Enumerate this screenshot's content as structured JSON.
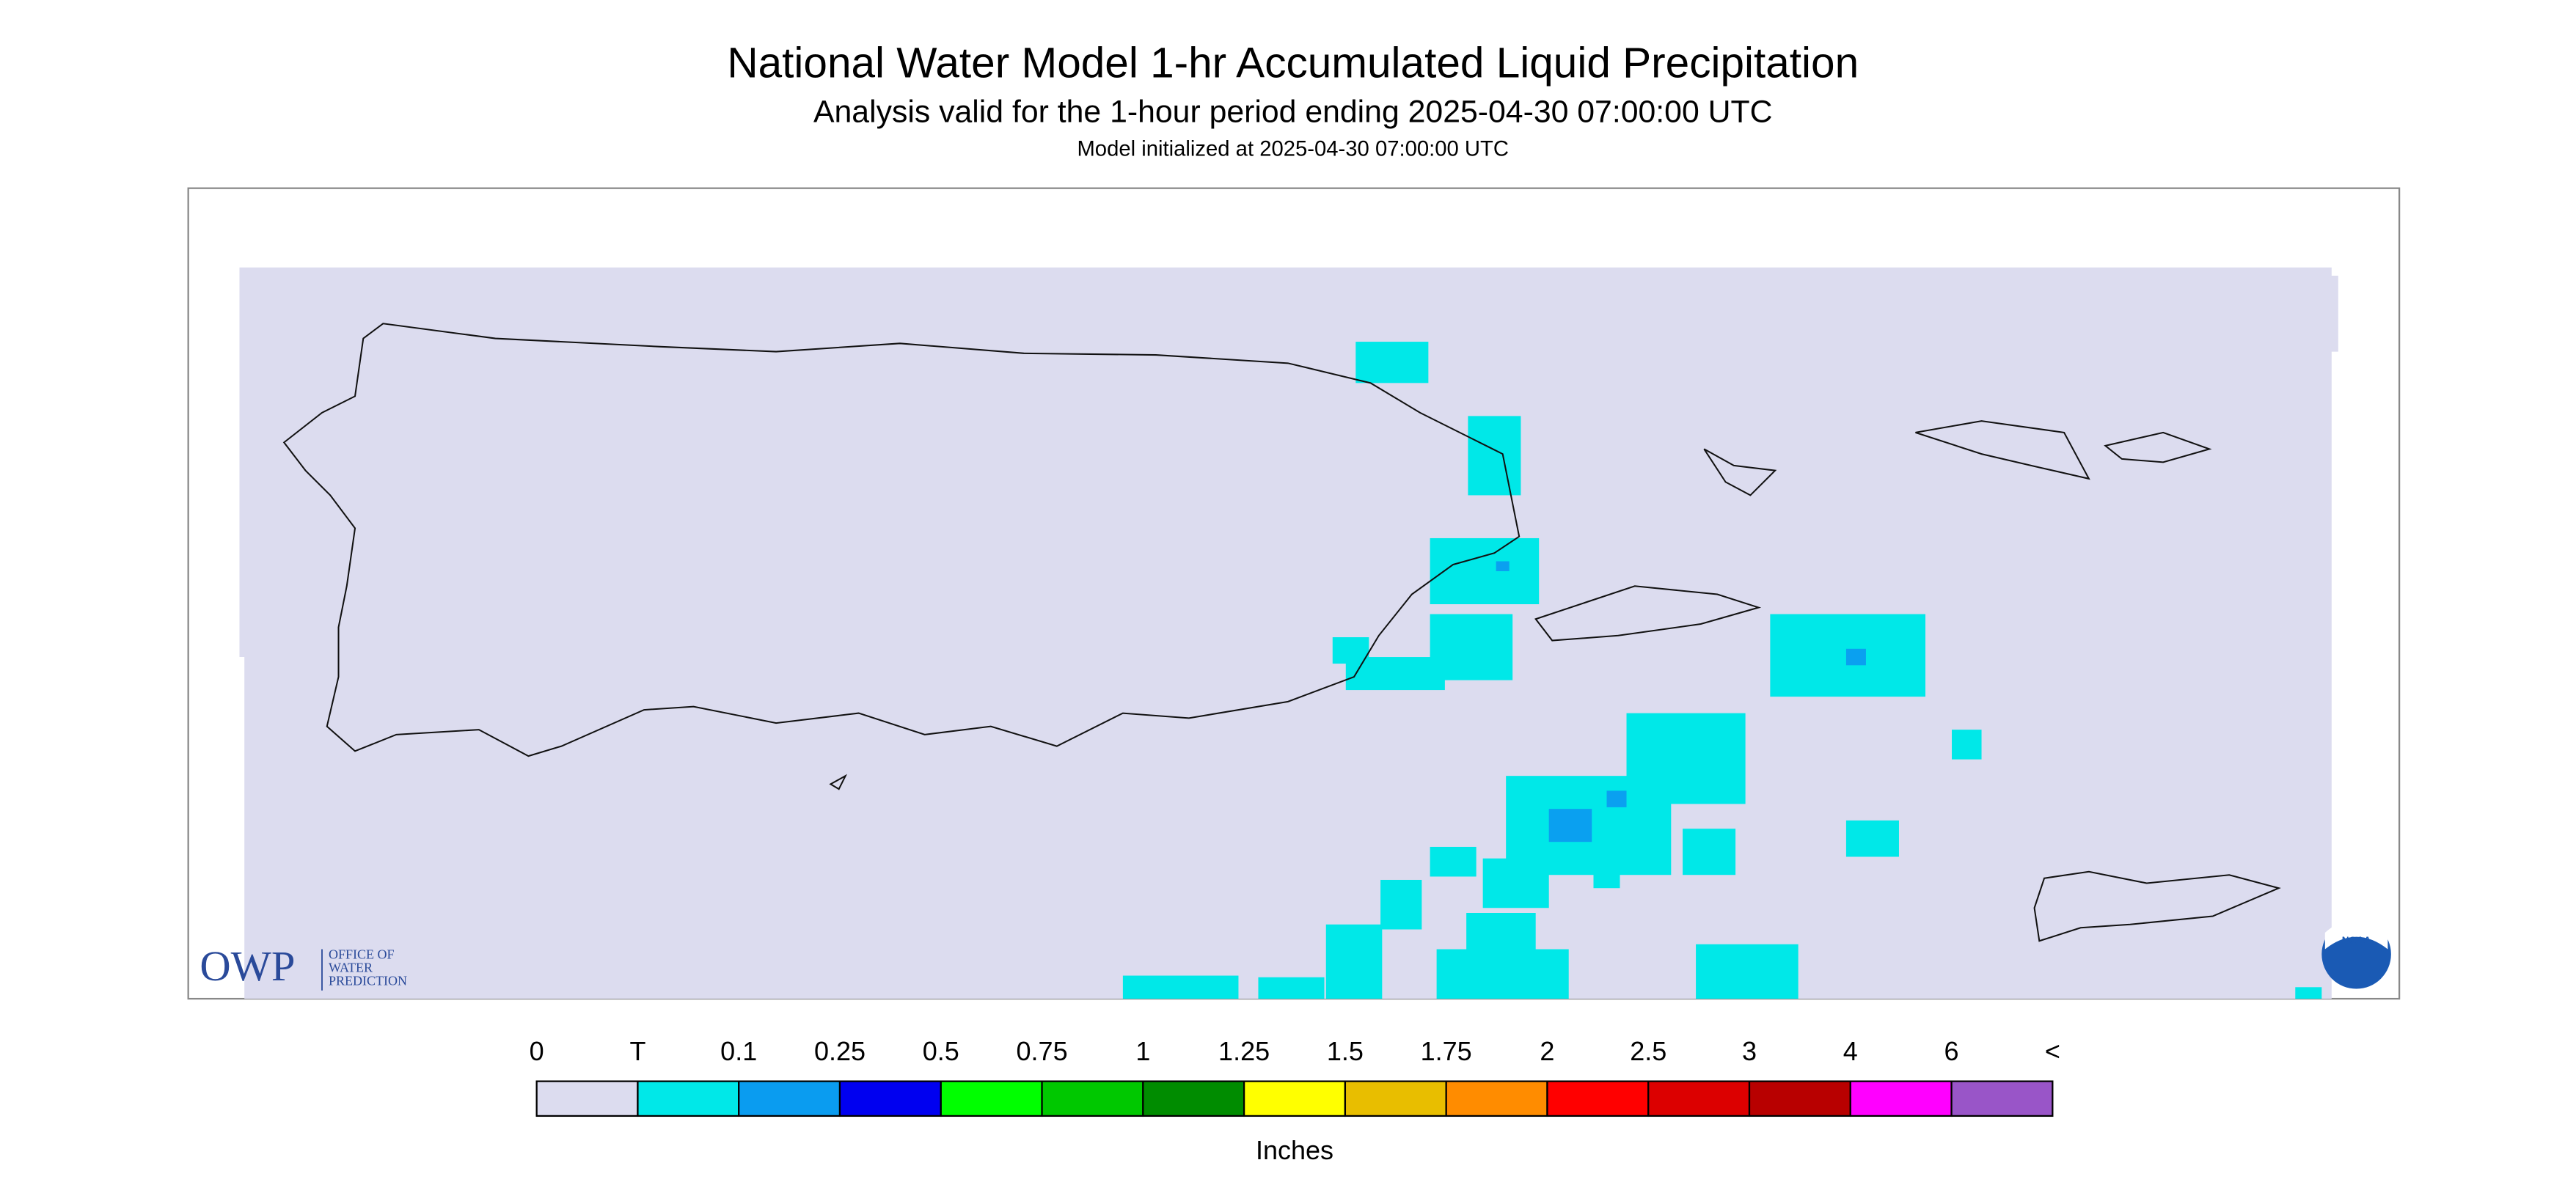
{
  "header": {
    "title": "National Water Model 1-hr Accumulated Liquid Precipitation",
    "subtitle": "Analysis valid for the 1-hour period ending 2025-04-30 07:00:00 UTC",
    "note": "Model initialized at 2025-04-30 07:00:00 UTC"
  },
  "logos": {
    "owp": "OWP",
    "owp_lines": [
      "OFFICE OF",
      "WATER",
      "PREDICTION"
    ],
    "noaa": "NOAA"
  },
  "legend": {
    "labels": [
      "0",
      "T",
      "0.1",
      "0.25",
      "0.5",
      "0.75",
      "1",
      "1.25",
      "1.5",
      "1.75",
      "2",
      "2.5",
      "3",
      "4",
      "6",
      "<"
    ],
    "colors": [
      "#dcdcef",
      "#00e8e8",
      "#0a9cf0",
      "#0000f0",
      "#00ff00",
      "#00c800",
      "#008c00",
      "#ffff00",
      "#e8be00",
      "#ff8c00",
      "#ff0000",
      "#dc0000",
      "#b80000",
      "#ff00ff",
      "#9955c8"
    ],
    "unit": "Inches"
  }
}
